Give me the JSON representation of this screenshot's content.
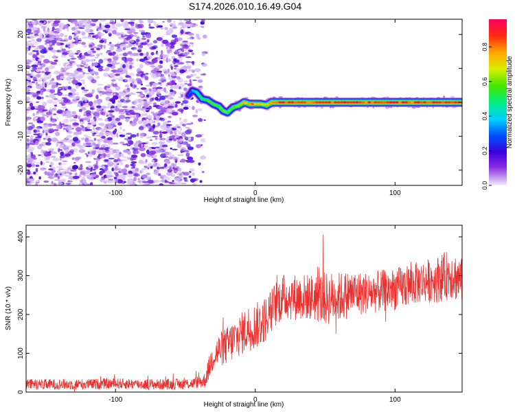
{
  "title": "S174.2026.010.16.49.G04",
  "chart_data": [
    {
      "type": "heatmap",
      "xlabel": "Height of straight line (km)",
      "ylabel": "Frequency (Hz)",
      "xlim": [
        -164,
        148
      ],
      "ylim": [
        -24.5,
        24.5
      ],
      "xticks": [
        -100,
        0,
        100
      ],
      "xtick_labels": [
        "-100",
        "0",
        "100"
      ],
      "yticks": [
        -20,
        -10,
        0,
        10,
        20
      ],
      "ytick_labels": [
        "-20",
        "-10",
        "0",
        "10",
        "20"
      ],
      "noise_region_x": [
        -164,
        -46
      ],
      "signal_curve": {
        "x": [
          -48,
          -45,
          -42,
          -38,
          -34,
          -30,
          -26,
          -23,
          -20,
          -16,
          -12,
          -8,
          -4,
          0,
          4,
          8,
          12,
          20,
          40,
          80,
          120,
          148
        ],
        "y": [
          2.0,
          3.5,
          3.0,
          1.0,
          0.6,
          -0.5,
          -1.2,
          -2.5,
          -3.0,
          -1.5,
          -1.0,
          0.0,
          -0.5,
          -0.5,
          -0.5,
          -0.8,
          0.0,
          0.0,
          0.0,
          0.0,
          0.0,
          0.0
        ],
        "amplitude": [
          0.2,
          0.4,
          0.5,
          0.55,
          0.6,
          0.6,
          0.65,
          0.65,
          0.62,
          0.65,
          0.7,
          0.8,
          0.85,
          0.85,
          0.75,
          0.8,
          0.9,
          0.95,
          0.95,
          0.95,
          0.95,
          0.9
        ]
      },
      "colorbar": {
        "label": "Normalized spectral amplitude",
        "range": [
          0.0,
          0.96
        ],
        "ticks": [
          0.0,
          0.2,
          0.4,
          0.6,
          0.8
        ],
        "tick_labels": [
          "0.0",
          "0.2",
          "0.4",
          "0.6",
          "0.8"
        ]
      }
    },
    {
      "type": "line",
      "xlabel": "Height of straight line (km)",
      "ylabel": "SNR (10 * v/v)",
      "xlim": [
        -164,
        148
      ],
      "ylim": [
        0,
        430
      ],
      "xticks": [
        -100,
        0,
        100
      ],
      "xtick_labels": [
        "-100",
        "0",
        "100"
      ],
      "yticks": [
        0,
        100,
        200,
        300,
        400
      ],
      "ytick_labels": [
        "0",
        "100",
        "200",
        "300",
        "400"
      ],
      "color": "#e8312f",
      "series": [
        {
          "name": "SNR",
          "x": [
            -164,
            -140,
            -120,
            -100,
            -80,
            -60,
            -45,
            -36,
            -30,
            -25,
            -20,
            -15,
            -10,
            -5,
            0,
            5,
            10,
            15,
            20,
            30,
            40,
            50,
            60,
            70,
            80,
            90,
            100,
            110,
            120,
            130,
            140,
            148
          ],
          "values": [
            20,
            20,
            20,
            22,
            20,
            20,
            22,
            30,
            95,
            110,
            120,
            135,
            150,
            165,
            170,
            180,
            200,
            230,
            245,
            245,
            245,
            240,
            245,
            255,
            255,
            260,
            265,
            275,
            285,
            290,
            305,
            285
          ],
          "noise_amplitude": [
            14,
            14,
            14,
            14,
            14,
            14,
            14,
            20,
            40,
            45,
            50,
            55,
            55,
            60,
            60,
            60,
            60,
            60,
            60,
            60,
            60,
            70,
            65,
            60,
            55,
            55,
            55,
            55,
            55,
            60,
            65,
            60
          ]
        }
      ]
    }
  ]
}
